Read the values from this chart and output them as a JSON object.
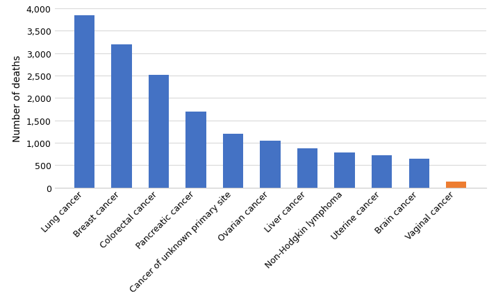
{
  "categories": [
    "Lung cancer",
    "Breast cancer",
    "Colorectal cancer",
    "Pancreatic cancer",
    "Cancer of unknown primary site",
    "Ovarian cancer",
    "Liver cancer",
    "Non-Hodgkin lymphoma",
    "Uterine cancer",
    "Brain cancer",
    "Vaginal cancer"
  ],
  "values": [
    3850,
    3200,
    2520,
    1700,
    1200,
    1050,
    870,
    780,
    720,
    650,
    130
  ],
  "bar_colors": [
    "#4472C4",
    "#4472C4",
    "#4472C4",
    "#4472C4",
    "#4472C4",
    "#4472C4",
    "#4472C4",
    "#4472C4",
    "#4472C4",
    "#4472C4",
    "#ED7D31"
  ],
  "ylabel": "Number of deaths",
  "ylim": [
    0,
    4000
  ],
  "yticks": [
    0,
    500,
    1000,
    1500,
    2000,
    2500,
    3000,
    3500,
    4000
  ],
  "background_color": "#ffffff",
  "grid_color": "#d9d9d9",
  "ylabel_fontsize": 10,
  "tick_fontsize": 9,
  "xlabel_rotation": 45,
  "bar_width": 0.55
}
